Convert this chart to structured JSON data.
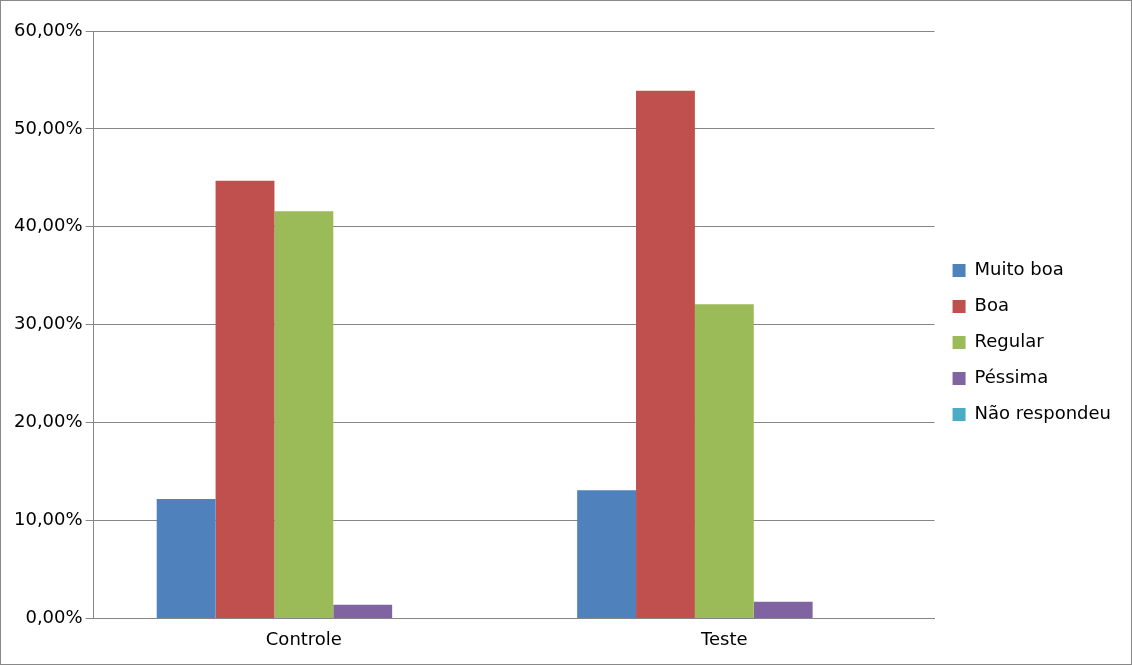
{
  "chart_data": {
    "type": "bar",
    "categories": [
      "Controle",
      "Teste"
    ],
    "series": [
      {
        "name": "Muito boa",
        "color": "#4f81bd",
        "values": [
          12.2,
          13.1
        ]
      },
      {
        "name": "Boa",
        "color": "#c0504d",
        "values": [
          44.7,
          53.9
        ]
      },
      {
        "name": "Regular",
        "color": "#9bbb59",
        "values": [
          41.6,
          32.1
        ]
      },
      {
        "name": "Péssima",
        "color": "#8064a2",
        "values": [
          1.4,
          1.7
        ]
      },
      {
        "name": "Não respondeu",
        "color": "#4bacc6",
        "values": [
          0,
          0
        ]
      }
    ],
    "ylim": [
      0,
      60
    ],
    "yticks": [
      {
        "value": 0,
        "label": "0,00%"
      },
      {
        "value": 10,
        "label": "10,00%"
      },
      {
        "value": 20,
        "label": "20,00%"
      },
      {
        "value": 30,
        "label": "30,00%"
      },
      {
        "value": 40,
        "label": "40,00%"
      },
      {
        "value": 50,
        "label": "50,00%"
      },
      {
        "value": 60,
        "label": "60,00%"
      }
    ],
    "grid": "y",
    "legend": "right"
  }
}
